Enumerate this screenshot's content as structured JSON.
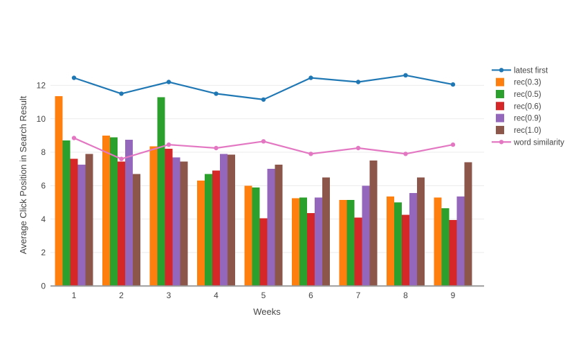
{
  "chart_data": {
    "type": "combo-bar-line",
    "title": "",
    "xlabel": "Weeks",
    "ylabel": "Average Click Position in Search Result",
    "categories": [
      "1",
      "2",
      "3",
      "4",
      "5",
      "6",
      "7",
      "8",
      "9"
    ],
    "y_ticks": [
      0,
      2,
      4,
      6,
      8,
      10,
      12
    ],
    "ylim": [
      0,
      13.6
    ],
    "grid": "horizontal-only",
    "legend_position": "right",
    "background_color": "#ffffff",
    "gridline_color": "#ebebeb",
    "axisline_color": "#9a9a9a",
    "text_color": "#444444",
    "bar_series": [
      {
        "name": "rec(0.3)",
        "color": "#ff7f0e",
        "values": [
          11.35,
          9.0,
          8.35,
          6.3,
          6.0,
          5.25,
          5.15,
          5.35,
          5.3
        ]
      },
      {
        "name": "rec(0.5)",
        "color": "#2ca02c",
        "values": [
          8.7,
          8.9,
          11.3,
          6.7,
          5.9,
          5.3,
          5.15,
          5.0,
          4.65
        ]
      },
      {
        "name": "rec(0.6)",
        "color": "#d62728",
        "values": [
          7.6,
          7.45,
          8.2,
          6.9,
          4.05,
          4.35,
          4.1,
          4.25,
          3.95
        ]
      },
      {
        "name": "rec(0.9)",
        "color": "#9467bd",
        "values": [
          7.25,
          8.75,
          7.7,
          7.9,
          7.0,
          5.3,
          6.0,
          5.55,
          5.35
        ]
      },
      {
        "name": "rec(1.0)",
        "color": "#8c564b",
        "values": [
          7.9,
          6.7,
          7.45,
          7.85,
          7.25,
          6.5,
          7.5,
          6.5,
          7.4
        ]
      }
    ],
    "line_series": [
      {
        "name": "latest first",
        "color": "#1f77b4",
        "values": [
          12.45,
          11.5,
          12.2,
          11.5,
          11.15,
          12.45,
          12.2,
          12.6,
          12.05
        ]
      },
      {
        "name": "word similarity",
        "color": "#e377c2",
        "values": [
          8.85,
          7.6,
          8.45,
          8.25,
          8.65,
          7.9,
          8.25,
          7.9,
          8.45
        ]
      }
    ],
    "legend": {
      "order": [
        "latest first",
        "rec(0.3)",
        "rec(0.5)",
        "rec(0.6)",
        "rec(0.9)",
        "rec(1.0)",
        "word similarity"
      ]
    }
  }
}
